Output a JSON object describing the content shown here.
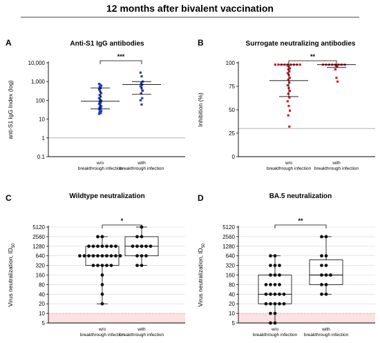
{
  "title": "12 months after bivalent vaccination",
  "chart_data": [
    {
      "panel": "A",
      "type": "scatter",
      "title": "Anti-S1 IgG antibodies",
      "ylabel": "anti-S1 IgG Index (log)",
      "yscale": "log",
      "ylim": [
        0.1,
        10000
      ],
      "yticks": [
        0.1,
        1,
        10,
        100,
        1000,
        10000
      ],
      "ytick_labels": [
        "0.1",
        "1",
        "10",
        "100",
        "1,000",
        "10,000"
      ],
      "reference_line": 1,
      "categories": [
        "w/o\nbreakthrough infection",
        "with\nbreakthrough infection"
      ],
      "significance": "***",
      "series": [
        {
          "values": [
            750,
            680,
            600,
            520,
            450,
            380,
            300,
            240,
            190,
            160,
            130,
            110,
            95,
            85,
            75,
            65,
            55,
            48,
            42,
            38,
            34,
            30,
            27,
            24,
            21,
            19
          ],
          "mean": 90,
          "sd_low": 35,
          "sd_high": 450
        },
        {
          "values": [
            3000,
            1900,
            1000,
            800,
            680,
            560,
            450,
            330,
            230,
            130,
            100,
            60
          ],
          "mean": 700,
          "sd_low": 210,
          "sd_high": 1000
        }
      ]
    },
    {
      "panel": "B",
      "type": "scatter",
      "title": "Surrogate neutralizing antibodies",
      "ylabel": "Inhibition (%)",
      "ylim": [
        0,
        100
      ],
      "yticks": [
        0,
        25,
        50,
        75,
        100
      ],
      "ytick_labels": [
        "0",
        "25",
        "50",
        "75",
        "100"
      ],
      "reference_line": 30,
      "categories": [
        "w/o\nbreakthrough infection",
        "with\nbreakthrough infection"
      ],
      "significance": "**",
      "series": [
        {
          "values": [
            98,
            98,
            98,
            98,
            98,
            98,
            98,
            98,
            98,
            98,
            97,
            96,
            94,
            93,
            91,
            89,
            87,
            84,
            82,
            79,
            76,
            73,
            70,
            67,
            63,
            59,
            54,
            49,
            44,
            32
          ],
          "mean": 81,
          "sd_low": 64,
          "sd_high": 98
        },
        {
          "values": [
            98,
            98,
            98,
            98,
            98,
            98,
            98,
            98,
            97,
            96,
            93,
            84,
            80
          ],
          "mean": 98,
          "sd_low": 95,
          "sd_high": 98
        }
      ]
    },
    {
      "panel": "C",
      "type": "box",
      "title": "Wildtype neutralization",
      "ylabel": "Virus neutralization, ID",
      "ylabel_sub": "50",
      "yscale": "log2",
      "ylim": [
        5,
        5120
      ],
      "yticks": [
        5,
        10,
        20,
        40,
        80,
        160,
        320,
        640,
        1280,
        2560,
        5120
      ],
      "ytick_labels": [
        "5",
        "10",
        "20",
        "40",
        "80",
        "160",
        "320",
        "640",
        "1280",
        "2560",
        "5120"
      ],
      "limit_line": 10,
      "categories": [
        "w/o\nbreakthrough infection",
        "with\nbreakthrough infection"
      ],
      "significance": "*",
      "series": [
        {
          "values": [
            2560,
            2560,
            1280,
            1280,
            1280,
            1280,
            1280,
            1280,
            1280,
            640,
            640,
            640,
            640,
            640,
            640,
            640,
            640,
            640,
            640,
            320,
            320,
            320,
            320,
            320,
            160,
            80,
            40,
            20
          ],
          "box": {
            "min": 20,
            "q1": 320,
            "median": 640,
            "q3": 1280,
            "max": 2560
          }
        },
        {
          "values": [
            5120,
            2560,
            2560,
            1280,
            1280,
            1280,
            1280,
            1280,
            640,
            640,
            640,
            320,
            320
          ],
          "box": {
            "min": 320,
            "q1": 640,
            "median": 1280,
            "q3": 2560,
            "max": 5120
          }
        }
      ]
    },
    {
      "panel": "D",
      "type": "box",
      "title": "BA.5 neutralization",
      "ylabel": "Virus neutralization, ID",
      "ylabel_sub": "50",
      "yscale": "log2",
      "ylim": [
        5,
        5120
      ],
      "yticks": [
        5,
        10,
        20,
        40,
        80,
        160,
        320,
        640,
        1280,
        2560,
        5120
      ],
      "ytick_labels": [
        "5",
        "10",
        "20",
        "40",
        "80",
        "160",
        "320",
        "640",
        "1280",
        "2560",
        "5120"
      ],
      "limit_line": 10,
      "categories": [
        "w/o\nbreakthrough infection",
        "with\nbreakthrough infection"
      ],
      "significance": "**",
      "series": [
        {
          "values": [
            640,
            640,
            320,
            320,
            320,
            160,
            160,
            160,
            80,
            80,
            80,
            80,
            40,
            40,
            40,
            40,
            40,
            20,
            20,
            20,
            20,
            20,
            10,
            10,
            5,
            5
          ],
          "box": {
            "min": 5,
            "q1": 20,
            "median": 40,
            "q3": 160,
            "max": 640
          }
        },
        {
          "values": [
            2560,
            2560,
            640,
            640,
            320,
            320,
            160,
            160,
            160,
            80,
            80,
            40,
            40
          ],
          "box": {
            "min": 40,
            "q1": 80,
            "median": 160,
            "q3": 480,
            "max": 2560
          }
        }
      ]
    }
  ]
}
